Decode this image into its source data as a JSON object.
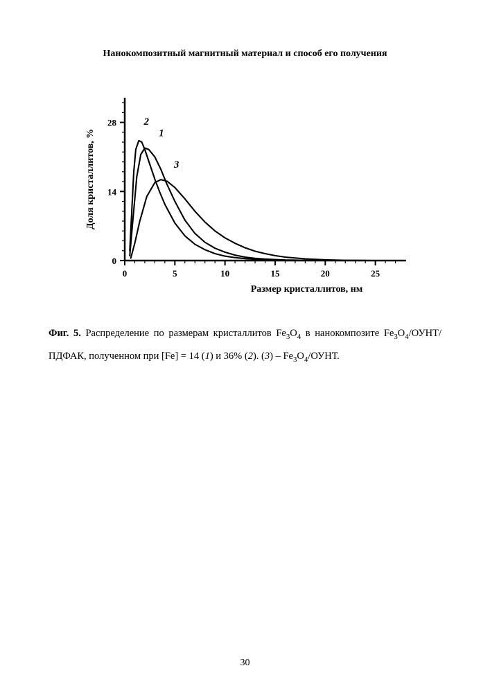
{
  "page_title": "Нанокомпозитный магнитный материал и способ его получения",
  "page_number": "30",
  "chart": {
    "type": "line",
    "ylabel": "Доля кристаллитов, %",
    "xlabel": "Размер кристаллитов, нм",
    "xlim": [
      0,
      28
    ],
    "ylim": [
      0,
      33
    ],
    "xticks": [
      0,
      5,
      10,
      15,
      20,
      25
    ],
    "yticks": [
      0,
      14,
      28
    ],
    "axis_color": "#000000",
    "line_color": "#000000",
    "line_width": 2.1,
    "background_color": "#ffffff",
    "label_fontsize": 14,
    "tick_fontsize": 13,
    "series": {
      "1": {
        "label": "1",
        "label_italic": true,
        "points": [
          [
            0.5,
            1
          ],
          [
            0.8,
            8
          ],
          [
            1.2,
            17
          ],
          [
            1.6,
            21.5
          ],
          [
            2.0,
            22.8
          ],
          [
            2.4,
            22.5
          ],
          [
            3.0,
            21.0
          ],
          [
            3.6,
            18.5
          ],
          [
            4.2,
            15.5
          ],
          [
            5.0,
            12.0
          ],
          [
            6.0,
            8.2
          ],
          [
            7.0,
            5.5
          ],
          [
            8.0,
            3.7
          ],
          [
            9.0,
            2.5
          ],
          [
            10.0,
            1.7
          ],
          [
            11.0,
            1.1
          ],
          [
            12.0,
            0.7
          ],
          [
            13.0,
            0.45
          ],
          [
            14.0,
            0.3
          ],
          [
            15.0,
            0.2
          ],
          [
            16.0,
            0.12
          ],
          [
            18.0,
            0.05
          ],
          [
            20.0,
            0.0
          ],
          [
            25.0,
            0.0
          ],
          [
            28.0,
            0.0
          ]
        ]
      },
      "2": {
        "label": "2",
        "label_italic": true,
        "points": [
          [
            0.5,
            2
          ],
          [
            0.7,
            10
          ],
          [
            0.9,
            18
          ],
          [
            1.1,
            22.5
          ],
          [
            1.4,
            24.3
          ],
          [
            1.7,
            24.0
          ],
          [
            2.0,
            22.5
          ],
          [
            2.5,
            19.5
          ],
          [
            3.0,
            16.5
          ],
          [
            3.5,
            13.8
          ],
          [
            4.0,
            11.4
          ],
          [
            5.0,
            7.6
          ],
          [
            6.0,
            5.0
          ],
          [
            7.0,
            3.3
          ],
          [
            8.0,
            2.2
          ],
          [
            9.0,
            1.4
          ],
          [
            10.0,
            0.9
          ],
          [
            11.0,
            0.6
          ],
          [
            12.0,
            0.4
          ],
          [
            14.0,
            0.15
          ],
          [
            16.0,
            0.06
          ],
          [
            18.0,
            0.0
          ],
          [
            20.0,
            0.0
          ],
          [
            25.0,
            0.0
          ],
          [
            28.0,
            0.0
          ]
        ]
      },
      "3": {
        "label": "3",
        "label_italic": true,
        "points": [
          [
            0.6,
            0.5
          ],
          [
            1.0,
            3.5
          ],
          [
            1.5,
            8.0
          ],
          [
            2.2,
            13.0
          ],
          [
            3.0,
            15.8
          ],
          [
            3.6,
            16.4
          ],
          [
            4.2,
            16.1
          ],
          [
            5.0,
            14.8
          ],
          [
            6.0,
            12.5
          ],
          [
            7.0,
            10.0
          ],
          [
            8.0,
            7.8
          ],
          [
            9.0,
            6.0
          ],
          [
            10.0,
            4.6
          ],
          [
            11.0,
            3.5
          ],
          [
            12.0,
            2.6
          ],
          [
            13.0,
            1.9
          ],
          [
            14.0,
            1.4
          ],
          [
            15.0,
            1.0
          ],
          [
            16.0,
            0.7
          ],
          [
            18.0,
            0.35
          ],
          [
            20.0,
            0.15
          ],
          [
            22.0,
            0.05
          ],
          [
            25.0,
            0.0
          ],
          [
            28.0,
            0.0
          ]
        ]
      }
    },
    "series_labels": [
      {
        "text": "2",
        "x": 1.9,
        "y": 27.5
      },
      {
        "text": "1",
        "x": 3.4,
        "y": 25.2
      },
      {
        "text": "3",
        "x": 4.9,
        "y": 18.8
      }
    ]
  },
  "caption": {
    "fig_label": "Фиг. 5.",
    "text_prefix": " Распределение по размерам кристаллитов Fe",
    "sub1": "3",
    "mid1": "O",
    "sub2": "4",
    "mid2": " в нанокомпозите Fe",
    "sub3": "3",
    "mid3": "O",
    "sub4": "4",
    "mid4": "/ОУНТ/ПДФАК, полученном при [Fe] = 14 (",
    "it1": "1",
    "mid5": ") и 36% (",
    "it2": "2",
    "mid6": "). (",
    "it3": "3",
    "mid7": ") – Fe",
    "sub5": "3",
    "mid8": "O",
    "sub6": "4",
    "mid9": "/ОУНТ."
  }
}
